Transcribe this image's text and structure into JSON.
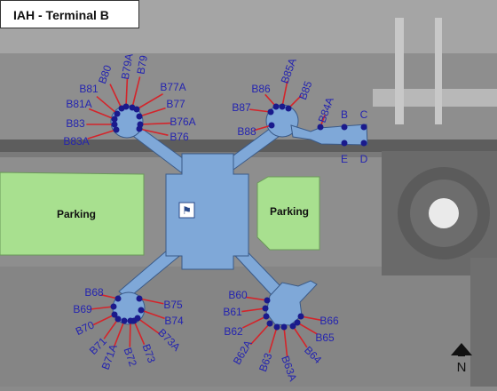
{
  "title": "IAH - Terminal B",
  "colors": {
    "terminal": "#7fa8d8",
    "parking": "#a8e08f",
    "gate_dot": "#1a1a8c",
    "gate_line": "#d4242a",
    "label": "#2424b0"
  },
  "parking_labels": {
    "left": "Parking",
    "right": "Parking"
  },
  "north_label": "N",
  "center_icon": "restroom-icon",
  "gates": {
    "nw": [
      "B80",
      "B79A",
      "B79",
      "B81",
      "B77A",
      "B81A",
      "B77",
      "B83",
      "B76A",
      "B83A",
      "B76"
    ],
    "ne": [
      "B86",
      "B85A",
      "B85",
      "B87",
      "B84A",
      "B88",
      "B",
      "C",
      "E",
      "D"
    ],
    "sw": [
      "B68",
      "B75",
      "B69",
      "B74",
      "B70",
      "B73A",
      "B71",
      "B71A",
      "B72",
      "B73"
    ],
    "se": [
      "B60",
      "B61",
      "B66",
      "B62",
      "B65",
      "B62A",
      "B64",
      "B63",
      "B63A"
    ]
  }
}
